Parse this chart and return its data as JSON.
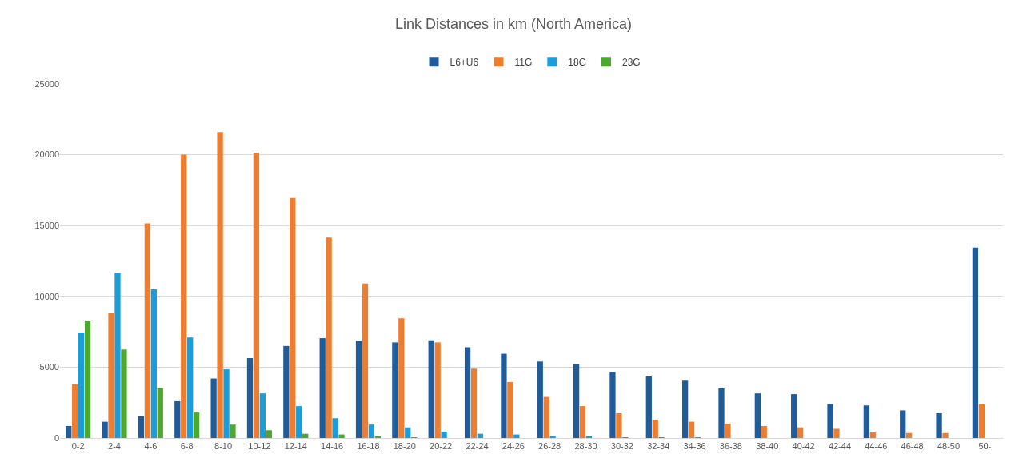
{
  "chart_data": {
    "type": "bar",
    "title": "Link Distances in km (North America)",
    "categories": [
      "0-2",
      "2-4",
      "4-6",
      "6-8",
      "8-10",
      "10-12",
      "12-14",
      "14-16",
      "16-18",
      "18-20",
      "20-22",
      "22-24",
      "24-26",
      "26-28",
      "28-30",
      "30-32",
      "32-34",
      "34-36",
      "36-38",
      "38-40",
      "40-42",
      "42-44",
      "44-46",
      "46-48",
      "48-50",
      "50-"
    ],
    "series": [
      {
        "name": "L6+U6",
        "color": "#1f5c99",
        "values": [
          850,
          1150,
          1550,
          2600,
          4200,
          5650,
          6500,
          7050,
          6850,
          6750,
          6900,
          6400,
          5950,
          5400,
          5200,
          4650,
          4350,
          4050,
          3500,
          3150,
          3100,
          2400,
          2300,
          1950,
          1750,
          13450
        ]
      },
      {
        "name": "11G",
        "color": "#ed7d31",
        "values": [
          3800,
          8800,
          15150,
          20000,
          21600,
          20150,
          16950,
          14150,
          10900,
          8450,
          6750,
          4900,
          3950,
          2900,
          2250,
          1750,
          1300,
          1150,
          1000,
          850,
          750,
          650,
          400,
          350,
          350,
          2400
        ]
      },
      {
        "name": "18G",
        "color": "#1a9dd9",
        "values": [
          7450,
          11650,
          10500,
          7100,
          4850,
          3150,
          2250,
          1400,
          950,
          750,
          450,
          300,
          250,
          150,
          150,
          50,
          50,
          50,
          0,
          0,
          0,
          0,
          0,
          0,
          0,
          0
        ]
      },
      {
        "name": "23G",
        "color": "#4ea72e",
        "values": [
          8300,
          6250,
          3500,
          1800,
          950,
          550,
          300,
          250,
          100,
          50,
          0,
          0,
          0,
          0,
          0,
          0,
          0,
          0,
          0,
          0,
          0,
          0,
          0,
          0,
          0,
          0
        ]
      }
    ],
    "ylim": [
      0,
      25000
    ],
    "yticks": [
      0,
      5000,
      10000,
      15000,
      20000,
      25000
    ],
    "grid": "y",
    "legend": "top"
  }
}
